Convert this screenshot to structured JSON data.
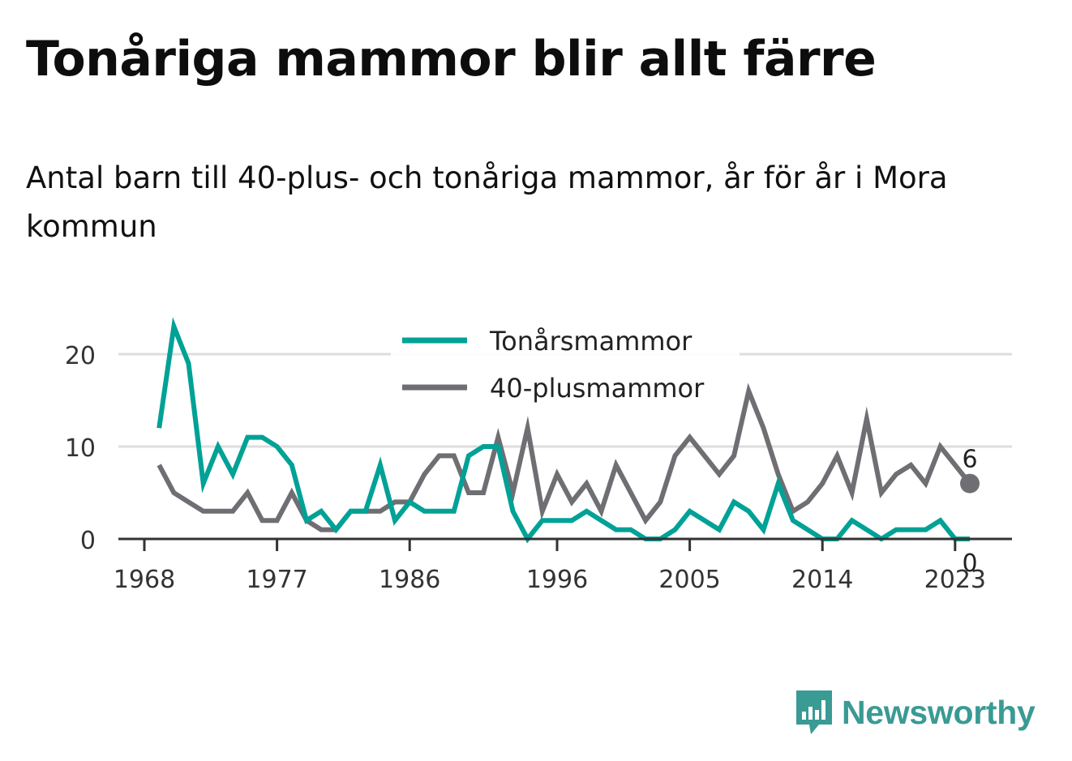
{
  "title": "Tonåriga mammor blir allt färre",
  "subtitle": "Antal barn till 40-plus- och tonåriga mammor, år för år i Mora kommun",
  "brand": {
    "name": "Newsworthy",
    "logo_icon": "bar-chart-speech-bubble-icon",
    "color": "#3a9a94"
  },
  "chart_data": {
    "type": "line",
    "x": [
      1969,
      1970,
      1971,
      1972,
      1973,
      1974,
      1975,
      1976,
      1977,
      1978,
      1979,
      1980,
      1981,
      1982,
      1983,
      1984,
      1985,
      1986,
      1987,
      1988,
      1989,
      1990,
      1991,
      1992,
      1993,
      1994,
      1995,
      1996,
      1997,
      1998,
      1999,
      2000,
      2001,
      2002,
      2003,
      2004,
      2005,
      2006,
      2007,
      2008,
      2009,
      2010,
      2011,
      2012,
      2013,
      2014,
      2015,
      2016,
      2017,
      2018,
      2019,
      2020,
      2021,
      2022,
      2023,
      2024
    ],
    "series": [
      {
        "name": "Tonårsmammor",
        "color": "#00a196",
        "values": [
          12,
          23,
          19,
          6,
          10,
          7,
          11,
          11,
          10,
          8,
          2,
          3,
          1,
          3,
          3,
          8,
          2,
          4,
          3,
          3,
          3,
          9,
          10,
          10,
          3,
          0,
          2,
          2,
          2,
          3,
          2,
          1,
          1,
          0,
          0,
          1,
          3,
          2,
          1,
          4,
          3,
          1,
          6,
          2,
          1,
          0,
          0,
          2,
          1,
          0,
          1,
          1,
          1,
          2,
          0,
          0
        ],
        "end_label": "0"
      },
      {
        "name": "40-plusmammor",
        "color": "#6f6e73",
        "values": [
          8,
          5,
          4,
          3,
          3,
          3,
          5,
          2,
          2,
          5,
          2,
          1,
          1,
          3,
          3,
          3,
          4,
          4,
          7,
          9,
          9,
          5,
          5,
          11,
          5,
          12,
          3,
          7,
          4,
          6,
          3,
          8,
          5,
          2,
          4,
          9,
          11,
          9,
          7,
          9,
          16,
          12,
          7,
          3,
          4,
          6,
          9,
          5,
          13,
          5,
          7,
          8,
          6,
          10,
          8,
          6
        ],
        "end_label": "6"
      }
    ],
    "ylim": [
      0,
      23
    ],
    "yticks": [
      0,
      10,
      20
    ],
    "xticks": [
      1968,
      1977,
      1986,
      1996,
      2005,
      2014,
      2023
    ],
    "grid": "horizontal",
    "legend": "top-center"
  }
}
